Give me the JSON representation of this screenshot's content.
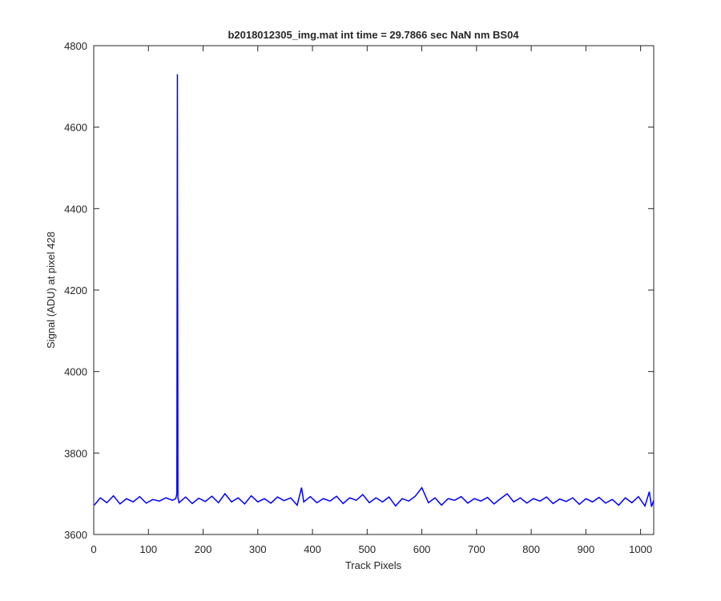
{
  "chart_data": {
    "type": "line",
    "title": "b2018012305_img.mat int time = 29.7866 sec  NaN nm BS04",
    "xlabel": "Track Pixels",
    "ylabel": "Signal (ADU) at pixel 428",
    "x": [
      1,
      12,
      24,
      36,
      48,
      60,
      72,
      84,
      96,
      108,
      120,
      132,
      144,
      150,
      152,
      153,
      154,
      156,
      168,
      180,
      192,
      204,
      216,
      228,
      240,
      252,
      264,
      276,
      288,
      300,
      312,
      324,
      336,
      348,
      360,
      372,
      380,
      384,
      396,
      408,
      420,
      432,
      444,
      456,
      468,
      480,
      492,
      504,
      516,
      528,
      540,
      552,
      564,
      576,
      588,
      600,
      612,
      624,
      636,
      648,
      660,
      672,
      684,
      696,
      708,
      720,
      732,
      744,
      756,
      768,
      780,
      792,
      804,
      816,
      828,
      840,
      852,
      864,
      876,
      888,
      900,
      912,
      924,
      936,
      948,
      960,
      972,
      984,
      996,
      1008,
      1016,
      1020,
      1024
    ],
    "series": [
      {
        "color": "#0000ff",
        "values": [
          3672,
          3690,
          3678,
          3695,
          3675,
          3688,
          3680,
          3693,
          3677,
          3686,
          3682,
          3690,
          3684,
          3688,
          3700,
          4730,
          3690,
          3678,
          3692,
          3676,
          3689,
          3681,
          3694,
          3678,
          3700,
          3680,
          3690,
          3675,
          3695,
          3680,
          3688,
          3677,
          3692,
          3683,
          3690,
          3672,
          3715,
          3680,
          3693,
          3678,
          3688,
          3682,
          3694,
          3676,
          3690,
          3684,
          3698,
          3678,
          3690,
          3680,
          3692,
          3670,
          3688,
          3682,
          3694,
          3715,
          3678,
          3690,
          3672,
          3688,
          3684,
          3693,
          3677,
          3688,
          3682,
          3691,
          3675,
          3688,
          3700,
          3680,
          3690,
          3677,
          3688,
          3682,
          3692,
          3676,
          3687,
          3681,
          3690,
          3674,
          3688,
          3680,
          3691,
          3677,
          3686,
          3672,
          3690,
          3678,
          3693,
          3670,
          3705,
          3668,
          3684
        ]
      }
    ],
    "xlim": [
      0,
      1024
    ],
    "ylim": [
      3600,
      4800
    ],
    "xticks": [
      0,
      100,
      200,
      300,
      400,
      500,
      600,
      700,
      800,
      900,
      1000
    ],
    "yticks": [
      3600,
      3800,
      4000,
      4200,
      4400,
      4600,
      4800
    ]
  }
}
